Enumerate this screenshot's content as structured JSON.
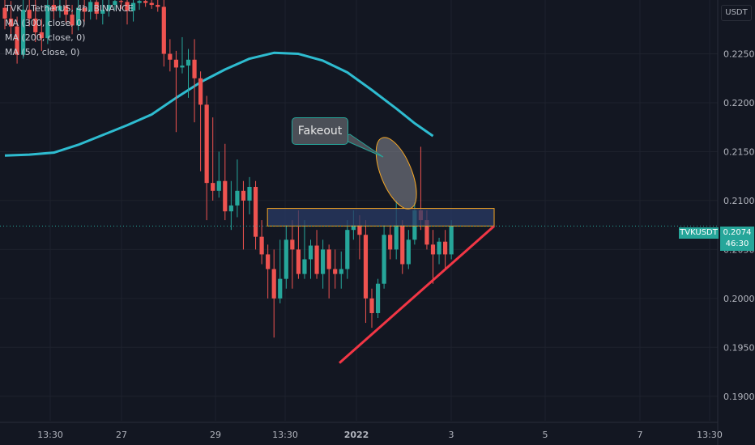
{
  "header": {
    "symbol_line": "TVK / TetherUS, 4h, BINANCE",
    "indicators": [
      "MA (300, close, 0)",
      "MA (200, close, 0)",
      "MA (50, close, 0)"
    ],
    "currency_badge": "USDT"
  },
  "annotation": {
    "label": "Fakeout"
  },
  "last_price": {
    "ticker": "TVKUSDT",
    "price": "0.2074",
    "countdown": "46:30",
    "value": 0.2074
  },
  "colors": {
    "background": "#131722",
    "up": "#26a69a",
    "down": "#ef5350",
    "ma_line": "#2ebcd0",
    "trendline": "#f23645",
    "zone_fill": "#2a3b66",
    "zone_border": "#f5a623",
    "last_price_badge": "#26a69a"
  },
  "chart_data": {
    "type": "candlestick",
    "y_ticks": [
      "0.2250",
      "0.2200",
      "0.2150",
      "0.2100",
      "0.2050",
      "0.2000",
      "0.1950",
      "0.1900"
    ],
    "x_ticks": [
      "13:30",
      "27",
      "29",
      "13:30",
      "2022",
      "3",
      "5",
      "7",
      "13:30"
    ],
    "ylim": [
      0.1875,
      0.2305
    ],
    "ma_line": [
      [
        0,
        0.2146
      ],
      [
        4,
        0.2147
      ],
      [
        8,
        0.2149
      ],
      [
        12,
        0.2157
      ],
      [
        16,
        0.2167
      ],
      [
        20,
        0.2177
      ],
      [
        24,
        0.2188
      ],
      [
        28,
        0.2205
      ],
      [
        32,
        0.2221
      ],
      [
        36,
        0.2234
      ],
      [
        40,
        0.2245
      ],
      [
        44,
        0.2251
      ],
      [
        48,
        0.225
      ],
      [
        52,
        0.2243
      ],
      [
        56,
        0.2231
      ],
      [
        60,
        0.2213
      ],
      [
        64,
        0.2194
      ],
      [
        67,
        0.2179
      ],
      [
        70,
        0.2166
      ]
    ],
    "candles": [
      [
        0.2297,
        0.2305,
        0.2275,
        0.2286
      ],
      [
        0.2286,
        0.2304,
        0.2265,
        0.2278
      ],
      [
        0.2278,
        0.2288,
        0.224,
        0.2249
      ],
      [
        0.2249,
        0.2305,
        0.2245,
        0.2295
      ],
      [
        0.2295,
        0.2305,
        0.2278,
        0.2286
      ],
      [
        0.2286,
        0.2305,
        0.2262,
        0.2272
      ],
      [
        0.2272,
        0.2286,
        0.2253,
        0.2266
      ],
      [
        0.2266,
        0.2305,
        0.226,
        0.23
      ],
      [
        0.23,
        0.2305,
        0.2285,
        0.2294
      ],
      [
        0.2294,
        0.2305,
        0.2287,
        0.2299
      ],
      [
        0.2299,
        0.2305,
        0.228,
        0.229
      ],
      [
        0.229,
        0.23,
        0.227,
        0.2279
      ],
      [
        0.2279,
        0.2305,
        0.2274,
        0.2297
      ],
      [
        0.2297,
        0.2305,
        0.2283,
        0.2293
      ],
      [
        0.2293,
        0.2305,
        0.2285,
        0.2303
      ],
      [
        0.2303,
        0.2305,
        0.2285,
        0.2291
      ],
      [
        0.2291,
        0.2305,
        0.228,
        0.2295
      ],
      [
        0.2295,
        0.2305,
        0.2288,
        0.23
      ],
      [
        0.23,
        0.2305,
        0.2295,
        0.2304
      ],
      [
        0.2304,
        0.2305,
        0.2296,
        0.2303
      ],
      [
        0.2303,
        0.2305,
        0.228,
        0.2294
      ],
      [
        0.2294,
        0.2305,
        0.2283,
        0.2302
      ],
      [
        0.2302,
        0.2305,
        0.2295,
        0.2304
      ],
      [
        0.2304,
        0.2305,
        0.2298,
        0.2302
      ],
      [
        0.2302,
        0.2305,
        0.2296,
        0.23
      ],
      [
        0.23,
        0.2305,
        0.2293,
        0.2298
      ],
      [
        0.2298,
        0.2305,
        0.2237,
        0.225
      ],
      [
        0.225,
        0.2265,
        0.2232,
        0.2244
      ],
      [
        0.2244,
        0.2253,
        0.217,
        0.2236
      ],
      [
        0.2236,
        0.2267,
        0.223,
        0.2238
      ],
      [
        0.2238,
        0.2255,
        0.2205,
        0.2244
      ],
      [
        0.2244,
        0.2265,
        0.218,
        0.2225
      ],
      [
        0.2225,
        0.2232,
        0.213,
        0.2198
      ],
      [
        0.2198,
        0.2207,
        0.208,
        0.2118
      ],
      [
        0.2118,
        0.2185,
        0.21,
        0.211
      ],
      [
        0.211,
        0.215,
        0.2103,
        0.212
      ],
      [
        0.212,
        0.2158,
        0.208,
        0.2089
      ],
      [
        0.2089,
        0.212,
        0.207,
        0.2095
      ],
      [
        0.2095,
        0.2142,
        0.2083,
        0.211
      ],
      [
        0.211,
        0.212,
        0.205,
        0.21
      ],
      [
        0.21,
        0.2124,
        0.2086,
        0.2114
      ],
      [
        0.2114,
        0.212,
        0.205,
        0.2063
      ],
      [
        0.2063,
        0.208,
        0.2035,
        0.2045
      ],
      [
        0.2045,
        0.2055,
        0.2,
        0.203
      ],
      [
        0.203,
        0.205,
        0.196,
        0.2
      ],
      [
        0.2,
        0.206,
        0.1995,
        0.202
      ],
      [
        0.202,
        0.2075,
        0.201,
        0.206
      ],
      [
        0.206,
        0.208,
        0.201,
        0.205
      ],
      [
        0.205,
        0.209,
        0.202,
        0.2025
      ],
      [
        0.2025,
        0.208,
        0.202,
        0.204
      ],
      [
        0.204,
        0.206,
        0.202,
        0.2054
      ],
      [
        0.2054,
        0.207,
        0.202,
        0.2025
      ],
      [
        0.2025,
        0.206,
        0.201,
        0.205
      ],
      [
        0.205,
        0.2055,
        0.2,
        0.203
      ],
      [
        0.203,
        0.205,
        0.201,
        0.2025
      ],
      [
        0.2025,
        0.2048,
        0.201,
        0.203
      ],
      [
        0.203,
        0.208,
        0.202,
        0.207
      ],
      [
        0.207,
        0.209,
        0.206,
        0.2075
      ],
      [
        0.2075,
        0.2085,
        0.204,
        0.2065
      ],
      [
        0.2065,
        0.208,
        0.1975,
        0.2
      ],
      [
        0.2,
        0.201,
        0.197,
        0.1985
      ],
      [
        0.1985,
        0.202,
        0.198,
        0.2015
      ],
      [
        0.2015,
        0.2075,
        0.201,
        0.2065
      ],
      [
        0.2065,
        0.2075,
        0.204,
        0.205
      ],
      [
        0.205,
        0.21,
        0.204,
        0.2075
      ],
      [
        0.2075,
        0.208,
        0.2025,
        0.2035
      ],
      [
        0.2035,
        0.207,
        0.203,
        0.206
      ],
      [
        0.206,
        0.2098,
        0.2055,
        0.209
      ],
      [
        0.209,
        0.2155,
        0.207,
        0.208
      ],
      [
        0.208,
        0.209,
        0.205,
        0.2055
      ],
      [
        0.2055,
        0.207,
        0.2015,
        0.2045
      ],
      [
        0.2045,
        0.2062,
        0.2035,
        0.2058
      ],
      [
        0.2058,
        0.207,
        0.203,
        0.2045
      ],
      [
        0.2045,
        0.208,
        0.204,
        0.2074
      ]
    ],
    "zone": {
      "x": [
        44,
        80
      ],
      "y": [
        0.2074,
        0.2092
      ]
    },
    "trendline": {
      "x": [
        54.7,
        80
      ],
      "y": [
        0.1934,
        0.2074
      ]
    },
    "fakeout_ellipse": {
      "x": [
        62,
        66
      ],
      "y": [
        0.2089,
        0.2167
      ]
    },
    "grid": true
  }
}
